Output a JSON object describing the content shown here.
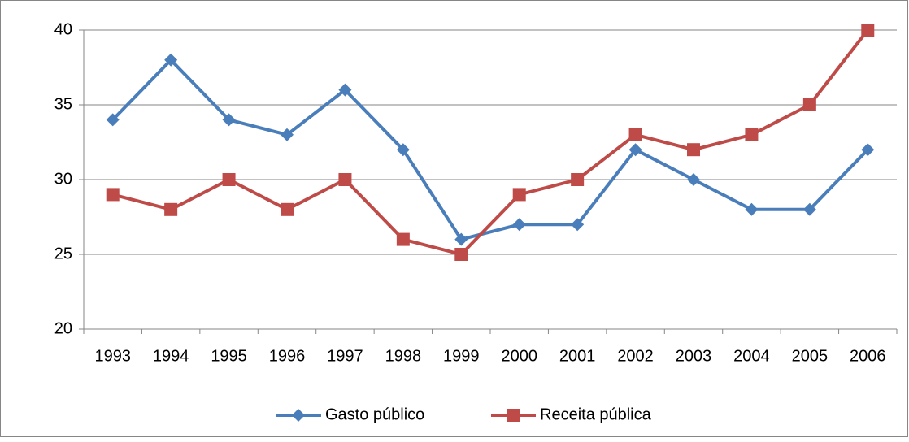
{
  "chart_data": {
    "type": "line",
    "categories": [
      "1993",
      "1994",
      "1995",
      "1996",
      "1997",
      "1998",
      "1999",
      "2000",
      "2001",
      "2002",
      "2003",
      "2004",
      "2005",
      "2006"
    ],
    "series": [
      {
        "name": "Gasto público",
        "color": "#4a7ebb",
        "marker": "diamond",
        "values": [
          34,
          38,
          34,
          33,
          36,
          32,
          26,
          27,
          27,
          32,
          30,
          28,
          28,
          32
        ]
      },
      {
        "name": "Receita pública",
        "color": "#be4b48",
        "marker": "square",
        "values": [
          29,
          28,
          30,
          28,
          30,
          26,
          25,
          29,
          30,
          33,
          32,
          33,
          35,
          40
        ]
      }
    ],
    "ylim": [
      20,
      40
    ],
    "yticks": [
      20,
      25,
      30,
      35,
      40
    ],
    "grid": true,
    "legend": "bottom"
  }
}
